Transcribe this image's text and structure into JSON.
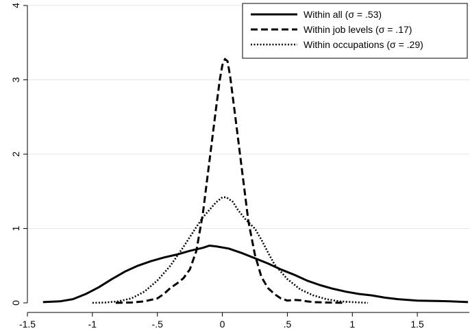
{
  "chart_data": {
    "type": "line",
    "title": "",
    "xlabel": "",
    "ylabel": "",
    "xlim": [
      -1.5,
      1.9
    ],
    "ylim": [
      0,
      4
    ],
    "x_ticks": [
      {
        "value": -1.5,
        "label": "-1.5"
      },
      {
        "value": -1.0,
        "label": "-1"
      },
      {
        "value": -0.5,
        "label": "-.5"
      },
      {
        "value": 0.0,
        "label": "0"
      },
      {
        "value": 0.5,
        "label": ".5"
      },
      {
        "value": 1.0,
        "label": "1"
      },
      {
        "value": 1.5,
        "label": "1.5"
      }
    ],
    "y_ticks": [
      {
        "value": 0,
        "label": "0"
      },
      {
        "value": 1,
        "label": "1"
      },
      {
        "value": 2,
        "label": "2"
      },
      {
        "value": 3,
        "label": "3"
      },
      {
        "value": 4,
        "label": "4"
      }
    ],
    "grid": {
      "horizontal": true,
      "vertical": false
    },
    "legend_position": "top-right",
    "series": [
      {
        "name": "Within all (σ = .53)",
        "style": "solid",
        "color": "#000000",
        "points": [
          [
            -1.38,
            0.01
          ],
          [
            -1.25,
            0.02
          ],
          [
            -1.15,
            0.05
          ],
          [
            -1.05,
            0.12
          ],
          [
            -0.95,
            0.21
          ],
          [
            -0.85,
            0.32
          ],
          [
            -0.75,
            0.42
          ],
          [
            -0.65,
            0.5
          ],
          [
            -0.55,
            0.56
          ],
          [
            -0.45,
            0.61
          ],
          [
            -0.35,
            0.65
          ],
          [
            -0.25,
            0.7
          ],
          [
            -0.15,
            0.74
          ],
          [
            -0.1,
            0.77
          ],
          [
            -0.05,
            0.76
          ],
          [
            0.05,
            0.73
          ],
          [
            0.15,
            0.67
          ],
          [
            0.25,
            0.6
          ],
          [
            0.35,
            0.53
          ],
          [
            0.45,
            0.45
          ],
          [
            0.55,
            0.38
          ],
          [
            0.65,
            0.3
          ],
          [
            0.75,
            0.24
          ],
          [
            0.85,
            0.19
          ],
          [
            0.95,
            0.15
          ],
          [
            1.05,
            0.12
          ],
          [
            1.15,
            0.1
          ],
          [
            1.25,
            0.07
          ],
          [
            1.35,
            0.05
          ],
          [
            1.5,
            0.03
          ],
          [
            1.65,
            0.025
          ],
          [
            1.75,
            0.02
          ],
          [
            1.89,
            0.01
          ]
        ]
      },
      {
        "name": "Within job levels (σ = .17)",
        "style": "dashed",
        "color": "#000000",
        "points": [
          [
            -0.82,
            0.0
          ],
          [
            -0.7,
            0.005
          ],
          [
            -0.6,
            0.02
          ],
          [
            -0.5,
            0.06
          ],
          [
            -0.45,
            0.12
          ],
          [
            -0.4,
            0.2
          ],
          [
            -0.35,
            0.26
          ],
          [
            -0.3,
            0.33
          ],
          [
            -0.25,
            0.45
          ],
          [
            -0.2,
            0.7
          ],
          [
            -0.15,
            1.2
          ],
          [
            -0.1,
            1.9
          ],
          [
            -0.05,
            2.6
          ],
          [
            -0.02,
            3.0
          ],
          [
            0.0,
            3.2
          ],
          [
            0.02,
            3.28
          ],
          [
            0.04,
            3.25
          ],
          [
            0.06,
            3.05
          ],
          [
            0.1,
            2.5
          ],
          [
            0.15,
            1.8
          ],
          [
            0.2,
            1.1
          ],
          [
            0.25,
            0.65
          ],
          [
            0.3,
            0.35
          ],
          [
            0.35,
            0.2
          ],
          [
            0.4,
            0.12
          ],
          [
            0.45,
            0.06
          ],
          [
            0.5,
            0.03
          ],
          [
            0.55,
            0.04
          ],
          [
            0.6,
            0.035
          ],
          [
            0.65,
            0.02
          ],
          [
            0.7,
            0.01
          ],
          [
            0.8,
            0.005
          ],
          [
            0.95,
            0.0
          ]
        ]
      },
      {
        "name": "Within occupations (σ = .29)",
        "style": "dotted",
        "color": "#000000",
        "points": [
          [
            -1.0,
            0.0
          ],
          [
            -0.9,
            0.005
          ],
          [
            -0.8,
            0.02
          ],
          [
            -0.7,
            0.06
          ],
          [
            -0.6,
            0.15
          ],
          [
            -0.5,
            0.3
          ],
          [
            -0.4,
            0.5
          ],
          [
            -0.3,
            0.75
          ],
          [
            -0.2,
            1.02
          ],
          [
            -0.15,
            1.15
          ],
          [
            -0.1,
            1.25
          ],
          [
            -0.05,
            1.35
          ],
          [
            0.0,
            1.42
          ],
          [
            0.03,
            1.42
          ],
          [
            0.08,
            1.36
          ],
          [
            0.12,
            1.25
          ],
          [
            0.18,
            1.12
          ],
          [
            0.25,
            1.0
          ],
          [
            0.3,
            0.85
          ],
          [
            0.35,
            0.68
          ],
          [
            0.4,
            0.52
          ],
          [
            0.5,
            0.32
          ],
          [
            0.6,
            0.18
          ],
          [
            0.7,
            0.1
          ],
          [
            0.8,
            0.05
          ],
          [
            0.9,
            0.02
          ],
          [
            1.0,
            0.01
          ],
          [
            1.12,
            0.0
          ]
        ]
      }
    ]
  }
}
